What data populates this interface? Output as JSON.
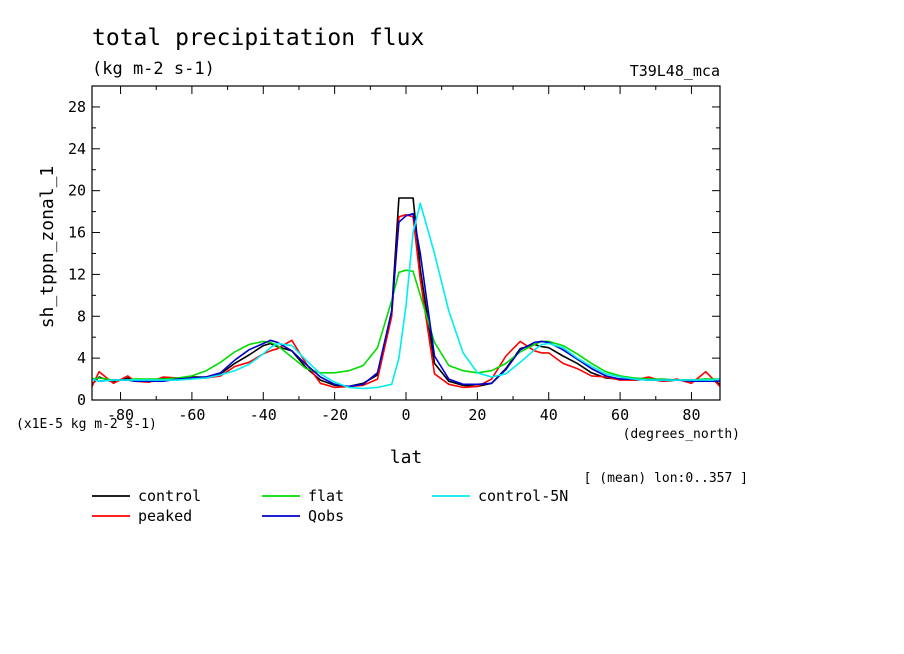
{
  "chart_data": {
    "type": "line",
    "title": "total precipitation flux",
    "subtitle": "(kg m-2 s-1)",
    "experiment_label": "T39L48_mca",
    "ylabel": "sh_tppn_zonal_1",
    "xlabel": "lat",
    "x_units_label": "(degrees_north)",
    "y_scale_label": "(x1E-5 kg m-2 s-1)",
    "averaging_note": "[ (mean) lon:0..357 ]",
    "xlim": [
      -88,
      88
    ],
    "ylim": [
      0,
      30
    ],
    "x_ticks": [
      -80,
      -60,
      -40,
      -20,
      0,
      20,
      40,
      60,
      80
    ],
    "y_ticks": [
      0,
      4,
      8,
      12,
      16,
      20,
      24,
      28
    ],
    "x": [
      -88,
      -86,
      -82,
      -78,
      -76,
      -72,
      -68,
      -64,
      -60,
      -56,
      -52,
      -48,
      -44,
      -40,
      -38,
      -36,
      -32,
      -28,
      -24,
      -20,
      -16,
      -12,
      -8,
      -4,
      -2,
      0,
      2,
      4,
      8,
      12,
      16,
      20,
      24,
      28,
      32,
      36,
      38,
      40,
      44,
      48,
      52,
      56,
      60,
      64,
      68,
      72,
      76,
      80,
      84,
      86,
      88
    ],
    "series": [
      {
        "name": "control",
        "color": "#000000",
        "values": [
          1.5,
          2.2,
          1.7,
          2.1,
          1.8,
          1.8,
          2.1,
          2.0,
          2.2,
          2.2,
          2.5,
          3.5,
          4.3,
          5.2,
          5.4,
          5.1,
          4.7,
          3.1,
          1.9,
          1.4,
          1.3,
          1.6,
          2.4,
          8.5,
          19.3,
          19.3,
          19.3,
          12.5,
          3.5,
          1.8,
          1.4,
          1.3,
          1.6,
          3.0,
          4.9,
          5.3,
          5.1,
          5.0,
          4.2,
          3.5,
          2.6,
          2.1,
          2.0,
          1.9,
          2.0,
          1.8,
          1.9,
          1.9,
          2.0,
          1.9,
          1.5
        ]
      },
      {
        "name": "peaked",
        "color": "#ff0000",
        "values": [
          1.3,
          2.7,
          1.6,
          2.3,
          1.8,
          1.7,
          2.2,
          2.1,
          2.1,
          2.1,
          2.3,
          3.2,
          3.6,
          4.4,
          4.7,
          4.9,
          5.7,
          3.5,
          1.6,
          1.2,
          1.3,
          1.4,
          2.0,
          8.0,
          17.5,
          17.7,
          17.5,
          11.5,
          2.5,
          1.5,
          1.2,
          1.3,
          2.0,
          4.2,
          5.6,
          4.7,
          4.5,
          4.5,
          3.5,
          3.0,
          2.3,
          2.2,
          1.9,
          1.9,
          2.2,
          1.8,
          2.0,
          1.6,
          2.7,
          2.0,
          1.3
        ]
      },
      {
        "name": "flat",
        "color": "#00dd00",
        "values": [
          2.0,
          2.1,
          1.9,
          1.9,
          2.0,
          2.0,
          2.0,
          2.1,
          2.3,
          2.8,
          3.6,
          4.6,
          5.3,
          5.6,
          5.5,
          5.2,
          4.1,
          3.0,
          2.6,
          2.6,
          2.8,
          3.3,
          5.0,
          9.5,
          12.2,
          12.4,
          12.3,
          10.0,
          5.5,
          3.3,
          2.8,
          2.6,
          2.8,
          3.5,
          4.6,
          5.3,
          5.6,
          5.6,
          5.2,
          4.4,
          3.5,
          2.7,
          2.3,
          2.1,
          2.0,
          2.0,
          1.9,
          1.9,
          2.0,
          2.0,
          2.0
        ]
      },
      {
        "name": "Qobs",
        "color": "#0000cc",
        "values": [
          2.0,
          1.8,
          1.9,
          1.9,
          1.8,
          1.8,
          1.8,
          2.0,
          2.1,
          2.2,
          2.6,
          3.8,
          4.8,
          5.4,
          5.7,
          5.5,
          4.7,
          3.4,
          2.2,
          1.5,
          1.3,
          1.5,
          2.6,
          8.5,
          17.0,
          17.6,
          17.8,
          14.0,
          4.2,
          2.0,
          1.5,
          1.5,
          1.6,
          2.9,
          4.8,
          5.5,
          5.6,
          5.5,
          4.8,
          3.9,
          3.0,
          2.3,
          2.0,
          2.0,
          1.9,
          1.9,
          1.9,
          1.8,
          1.8,
          1.8,
          1.8
        ]
      },
      {
        "name": "control-5N",
        "color": "#00eeee",
        "values": [
          2.0,
          1.8,
          1.9,
          1.9,
          1.9,
          1.9,
          1.9,
          1.9,
          2.0,
          2.1,
          2.4,
          2.8,
          3.4,
          4.4,
          5.0,
          5.4,
          5.2,
          3.8,
          2.5,
          1.7,
          1.2,
          1.1,
          1.2,
          1.5,
          4.0,
          9.0,
          16.0,
          18.8,
          14.0,
          8.5,
          4.5,
          2.6,
          2.2,
          2.5,
          3.6,
          4.8,
          5.3,
          5.4,
          5.0,
          4.0,
          3.2,
          2.5,
          2.2,
          2.0,
          1.9,
          1.9,
          1.9,
          1.9,
          1.9,
          1.9,
          2.0
        ]
      }
    ]
  }
}
